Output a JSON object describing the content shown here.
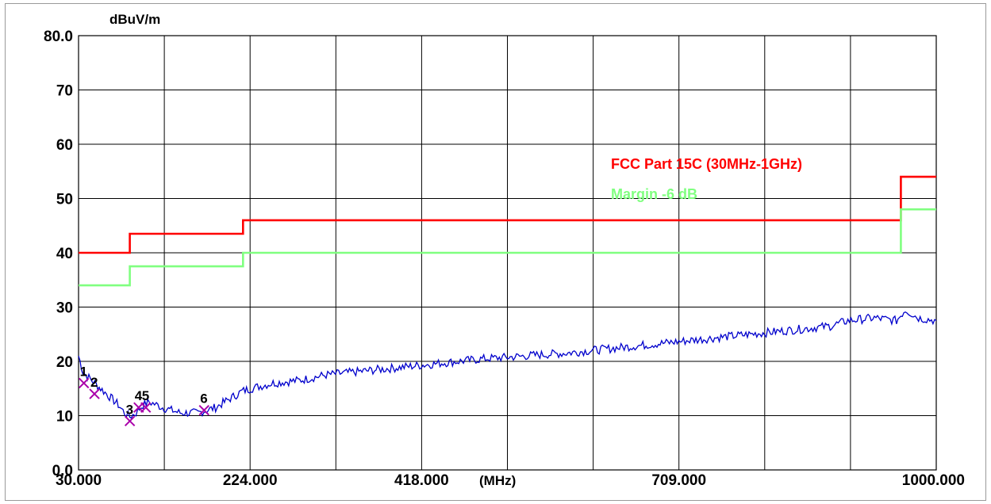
{
  "chart_data": {
    "type": "line",
    "ylabel": "dBuV/m",
    "xlabel": "(MHz)",
    "xlim": [
      30,
      1000
    ],
    "ylim": [
      0,
      80
    ],
    "grid": true,
    "y_ticks": [
      {
        "value": 80,
        "label": "80.0"
      },
      {
        "value": 70,
        "label": "70"
      },
      {
        "value": 60,
        "label": "60"
      },
      {
        "value": 50,
        "label": "50"
      },
      {
        "value": 40,
        "label": "40"
      },
      {
        "value": 30,
        "label": "30"
      },
      {
        "value": 20,
        "label": "20"
      },
      {
        "value": 10,
        "label": "10"
      },
      {
        "value": 0,
        "label": "0.0"
      }
    ],
    "x_ticks": [
      {
        "value": 30,
        "label": "30.000"
      },
      {
        "value": 224,
        "label": "224.000"
      },
      {
        "value": 418,
        "label": "418.000"
      },
      {
        "value": 709,
        "label": "709.000"
      },
      {
        "value": 1000,
        "label": "1000.000"
      }
    ],
    "series": [
      {
        "name": "FCC Part 15C (30MHz-1GHz)",
        "color": "#ff0000",
        "x": [
          30,
          88,
          88,
          216,
          216,
          960,
          960,
          1000
        ],
        "y": [
          40,
          40,
          43.5,
          43.5,
          46,
          46,
          54,
          54
        ]
      },
      {
        "name": "Margin -6 dB",
        "color": "#80ff80",
        "x": [
          30,
          88,
          88,
          216,
          216,
          960,
          960,
          1000
        ],
        "y": [
          34,
          34,
          37.5,
          37.5,
          40,
          40,
          48,
          48
        ]
      },
      {
        "color": "#0000cc",
        "x": [
          30,
          35,
          45,
          55,
          65,
          75,
          82,
          88,
          95,
          103,
          110,
          118,
          125,
          135,
          145,
          155,
          165,
          175,
          185,
          195,
          205,
          215,
          225,
          250,
          280,
          310,
          340,
          370,
          400,
          430,
          460,
          490,
          520,
          550,
          580,
          610,
          640,
          670,
          700,
          730,
          760,
          790,
          820,
          850,
          880,
          900,
          930,
          955,
          965,
          980,
          1000
        ],
        "y": [
          21,
          18,
          16.5,
          15,
          13.5,
          12,
          10.5,
          9.8,
          10.5,
          12,
          12.5,
          12,
          11.5,
          11,
          10.5,
          10.5,
          10.5,
          11,
          11.5,
          12.5,
          13.5,
          14.5,
          15,
          16,
          16.5,
          17.5,
          18,
          18.5,
          19,
          19.5,
          20,
          20.5,
          20.8,
          21.2,
          21.5,
          22,
          22.5,
          23,
          23.5,
          24,
          24.5,
          25,
          25.5,
          26,
          26.5,
          27.5,
          28,
          27.5,
          29.5,
          28,
          27.5
        ]
      }
    ],
    "markers": [
      {
        "label": "1",
        "x": 36,
        "y": 16
      },
      {
        "label": "2",
        "x": 48,
        "y": 14
      },
      {
        "label": "3",
        "x": 88,
        "y": 9
      },
      {
        "label": "4",
        "x": 98,
        "y": 11.5
      },
      {
        "label": "5",
        "x": 106,
        "y": 11.5
      },
      {
        "label": "6",
        "x": 172,
        "y": 11
      }
    ]
  }
}
